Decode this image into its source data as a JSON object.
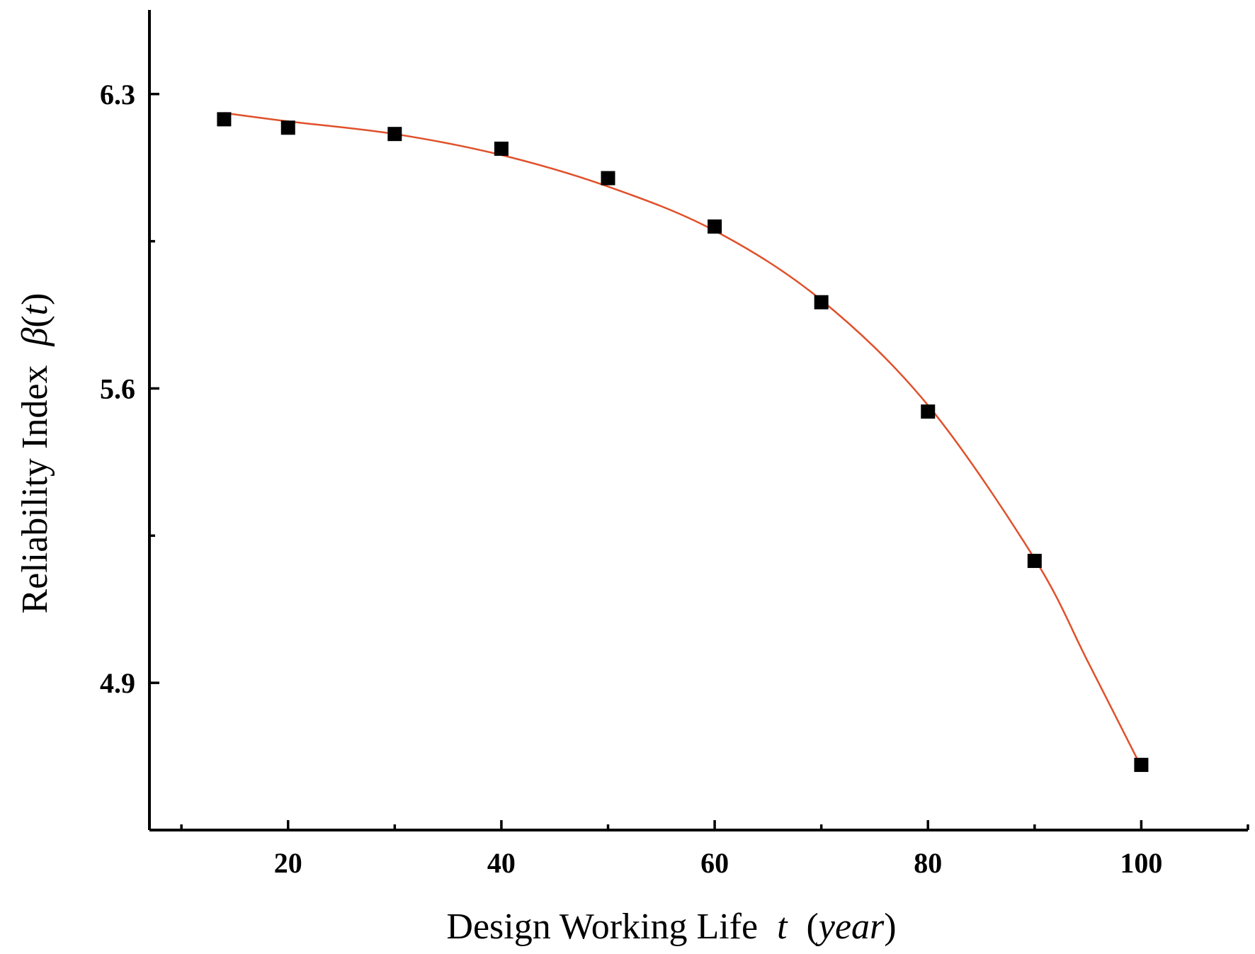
{
  "chart_data": {
    "type": "scatter",
    "title": "",
    "xlabel": {
      "text": "Design Working Life",
      "variable": "t",
      "unit": "year"
    },
    "ylabel": {
      "text": "Reliability Index",
      "symbol": "β",
      "variable": "t"
    },
    "xlim": [
      7,
      110
    ],
    "ylim": [
      4.55,
      6.5
    ],
    "x_ticks": [
      20,
      40,
      60,
      80,
      100
    ],
    "x_minor_ticks": [
      10,
      30,
      50,
      70,
      90,
      110
    ],
    "y_ticks": [
      4.9,
      5.6,
      6.3
    ],
    "y_minor_ticks": [
      4.55,
      5.25,
      5.95
    ],
    "y_tick_labels": [
      "4.9",
      "5.6",
      "6.3"
    ],
    "grid": false,
    "series": [
      {
        "kind": "points",
        "marker": "square",
        "color": "#000000",
        "x": [
          14,
          20,
          30,
          40,
          50,
          60,
          70,
          80,
          90,
          100
        ],
        "y": [
          6.24,
          6.22,
          6.205,
          6.17,
          6.1,
          5.985,
          5.805,
          5.545,
          5.19,
          4.705
        ]
      },
      {
        "kind": "fit-curve",
        "color": "#e0502a",
        "x": [
          14,
          20,
          30,
          40,
          50,
          60,
          70,
          80,
          90,
          95,
          100
        ],
        "y": [
          6.255,
          6.235,
          6.205,
          6.155,
          6.08,
          5.975,
          5.81,
          5.56,
          5.195,
          4.95,
          4.7
        ]
      }
    ]
  }
}
